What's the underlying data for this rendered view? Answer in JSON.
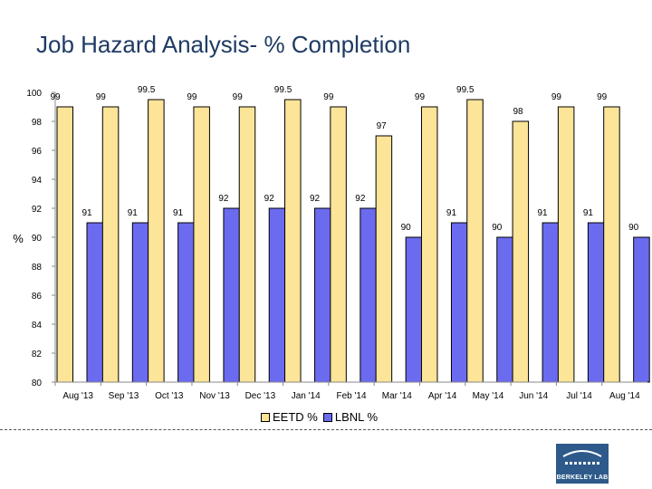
{
  "title": "Job Hazard Analysis- % Completion",
  "chart_data": {
    "type": "bar",
    "title": "Job Hazard Analysis- % Completion",
    "xlabel": "",
    "ylabel": "%",
    "ylim": [
      80,
      100
    ],
    "yticks": [
      80,
      82,
      84,
      86,
      88,
      90,
      92,
      94,
      96,
      98,
      100
    ],
    "categories": [
      "Aug '13",
      "Sep '13",
      "Oct '13",
      "Nov '13",
      "Dec '13",
      "Jan '14",
      "Feb '14",
      "Mar '14",
      "Apr '14",
      "May '14",
      "Jun '14",
      "Jul '14",
      "Aug '14"
    ],
    "series": [
      {
        "name": "EETD %",
        "color": "#fce498",
        "values": [
          99,
          99,
          99.5,
          99,
          99,
          99.5,
          99,
          97,
          99,
          99.5,
          98,
          99,
          99
        ],
        "labels": [
          "99",
          "99",
          "99.5",
          "99",
          "99",
          "99.5",
          "99",
          "97",
          "99",
          "99.5",
          "98",
          "99",
          "99"
        ]
      },
      {
        "name": "LBNL %",
        "color": "#6b6bf0",
        "values": [
          91,
          91,
          91,
          92,
          92,
          92,
          92,
          90,
          91,
          90,
          91,
          91,
          90
        ],
        "labels": [
          "91",
          "91",
          "91",
          "92",
          "92",
          "92",
          "92",
          "90",
          "91",
          "90",
          "91",
          "91",
          "90"
        ]
      }
    ],
    "legend": "bottom",
    "grid": false
  },
  "logo": {
    "text": "BERKELEY LAB"
  }
}
